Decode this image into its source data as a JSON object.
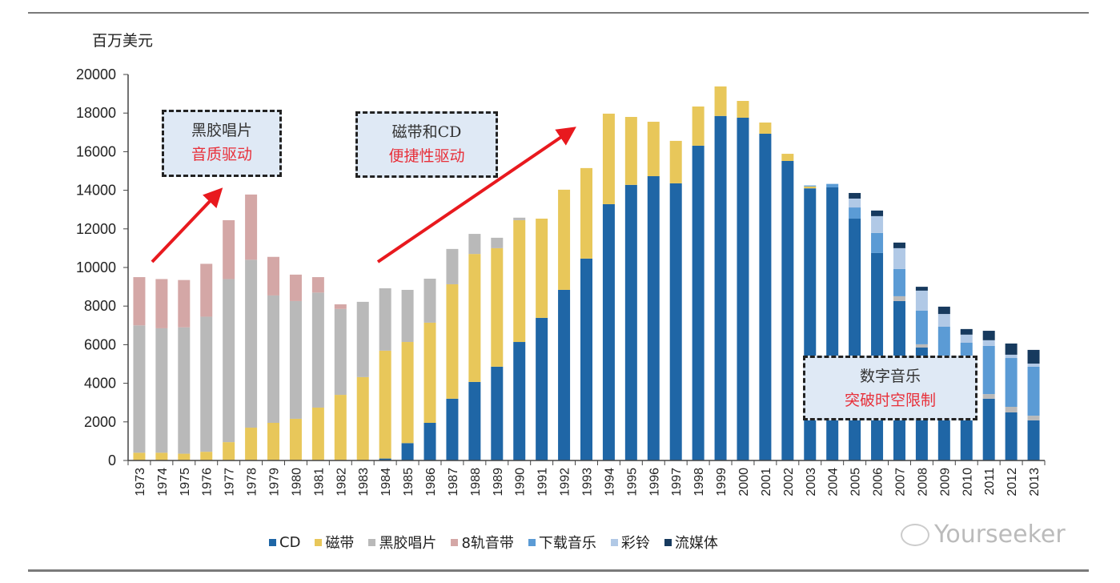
{
  "chart_data": {
    "type": "bar",
    "stacked": true,
    "unit_label": "百万美元",
    "ylim": [
      0,
      20000
    ],
    "yticks": [
      0,
      2000,
      4000,
      6000,
      8000,
      10000,
      12000,
      14000,
      16000,
      18000,
      20000
    ],
    "grid": false,
    "legend_position": "bottom",
    "categories": [
      "1973",
      "1974",
      "1975",
      "1976",
      "1977",
      "1978",
      "1979",
      "1980",
      "1981",
      "1982",
      "1983",
      "1984",
      "1985",
      "1986",
      "1987",
      "1988",
      "1989",
      "1990",
      "1991",
      "1992",
      "1993",
      "1994",
      "1995",
      "1996",
      "1997",
      "1998",
      "1999",
      "2000",
      "2001",
      "2002",
      "2003",
      "2004",
      "2005",
      "2006",
      "2007",
      "2008",
      "2009",
      "2010",
      "2011",
      "2012",
      "2013"
    ],
    "series": [
      {
        "name": "CD",
        "color": "#1f66a6",
        "values": [
          0,
          0,
          0,
          0,
          0,
          0,
          0,
          0,
          0,
          0,
          0,
          100,
          900,
          1950,
          3200,
          4070,
          4860,
          6140,
          7390,
          8840,
          10460,
          13280,
          14280,
          14730,
          14360,
          16310,
          17850,
          17760,
          16930,
          15520,
          14100,
          14150,
          12530,
          10750,
          8260,
          5850,
          4300,
          3400,
          3200,
          2490,
          2080
        ]
      },
      {
        "name": "磁带",
        "color": "#e8c75a",
        "values": [
          400,
          400,
          350,
          450,
          950,
          1700,
          1950,
          2160,
          2740,
          3400,
          4320,
          5590,
          5240,
          5190,
          5930,
          6630,
          6140,
          6310,
          5140,
          5190,
          4690,
          4690,
          3520,
          2820,
          2200,
          2030,
          1530,
          870,
          580,
          370,
          100,
          0,
          0,
          0,
          0,
          0,
          0,
          0,
          0,
          0,
          0
        ]
      },
      {
        "name": "黑胶唱片",
        "color": "#b9b9b9",
        "values": [
          6600,
          6450,
          6550,
          7000,
          8450,
          8700,
          6600,
          6100,
          5960,
          4450,
          3900,
          3230,
          2700,
          2280,
          1830,
          1040,
          540,
          130,
          0,
          0,
          0,
          0,
          0,
          0,
          0,
          0,
          0,
          0,
          0,
          0,
          0,
          0,
          0,
          0,
          250,
          170,
          200,
          200,
          240,
          290,
          240
        ]
      },
      {
        "name": "8轨音带",
        "color": "#d4a7a6",
        "values": [
          2500,
          2550,
          2450,
          2740,
          3050,
          3380,
          2000,
          1370,
          800,
          240,
          0,
          0,
          0,
          0,
          0,
          0,
          0,
          0,
          0,
          0,
          0,
          0,
          0,
          0,
          0,
          0,
          0,
          0,
          0,
          0,
          0,
          0,
          0,
          0,
          0,
          0,
          0,
          0,
          0,
          0,
          0
        ]
      },
      {
        "name": "下载音乐",
        "color": "#5b9bd5",
        "values": [
          0,
          0,
          0,
          0,
          0,
          0,
          0,
          0,
          0,
          0,
          0,
          0,
          0,
          0,
          0,
          0,
          0,
          0,
          0,
          0,
          0,
          0,
          0,
          0,
          0,
          0,
          0,
          0,
          0,
          0,
          50,
          180,
          580,
          1040,
          1410,
          1740,
          2430,
          2500,
          2500,
          2530,
          2540
        ]
      },
      {
        "name": "彩铃",
        "color": "#b1c9e6",
        "values": [
          0,
          0,
          0,
          0,
          0,
          0,
          0,
          0,
          0,
          0,
          0,
          0,
          0,
          0,
          0,
          0,
          0,
          0,
          0,
          0,
          0,
          0,
          0,
          0,
          0,
          0,
          0,
          0,
          0,
          0,
          0,
          0,
          460,
          870,
          1080,
          1040,
          660,
          420,
          290,
          170,
          160
        ]
      },
      {
        "name": "流媒体",
        "color": "#173a5e",
        "values": [
          0,
          0,
          0,
          0,
          0,
          0,
          0,
          0,
          0,
          0,
          0,
          0,
          0,
          0,
          0,
          0,
          0,
          0,
          0,
          0,
          0,
          0,
          0,
          0,
          0,
          0,
          0,
          0,
          0,
          0,
          0,
          0,
          290,
          290,
          290,
          200,
          380,
          290,
          490,
          580,
          710
        ]
      }
    ],
    "annotations": [
      {
        "line1": "黑胶唱片",
        "line2": "音质驱动"
      },
      {
        "line1": "磁带和CD",
        "line2": "便捷性驱动"
      },
      {
        "line1": "数字音乐",
        "line2": "突破时空限制"
      }
    ],
    "annotation_colors": {
      "line1": "#333333",
      "line2": "#e8303a",
      "box_fill": "#dfe9f5",
      "arrow": "#e8191e"
    }
  },
  "watermark": "Yourseeker"
}
